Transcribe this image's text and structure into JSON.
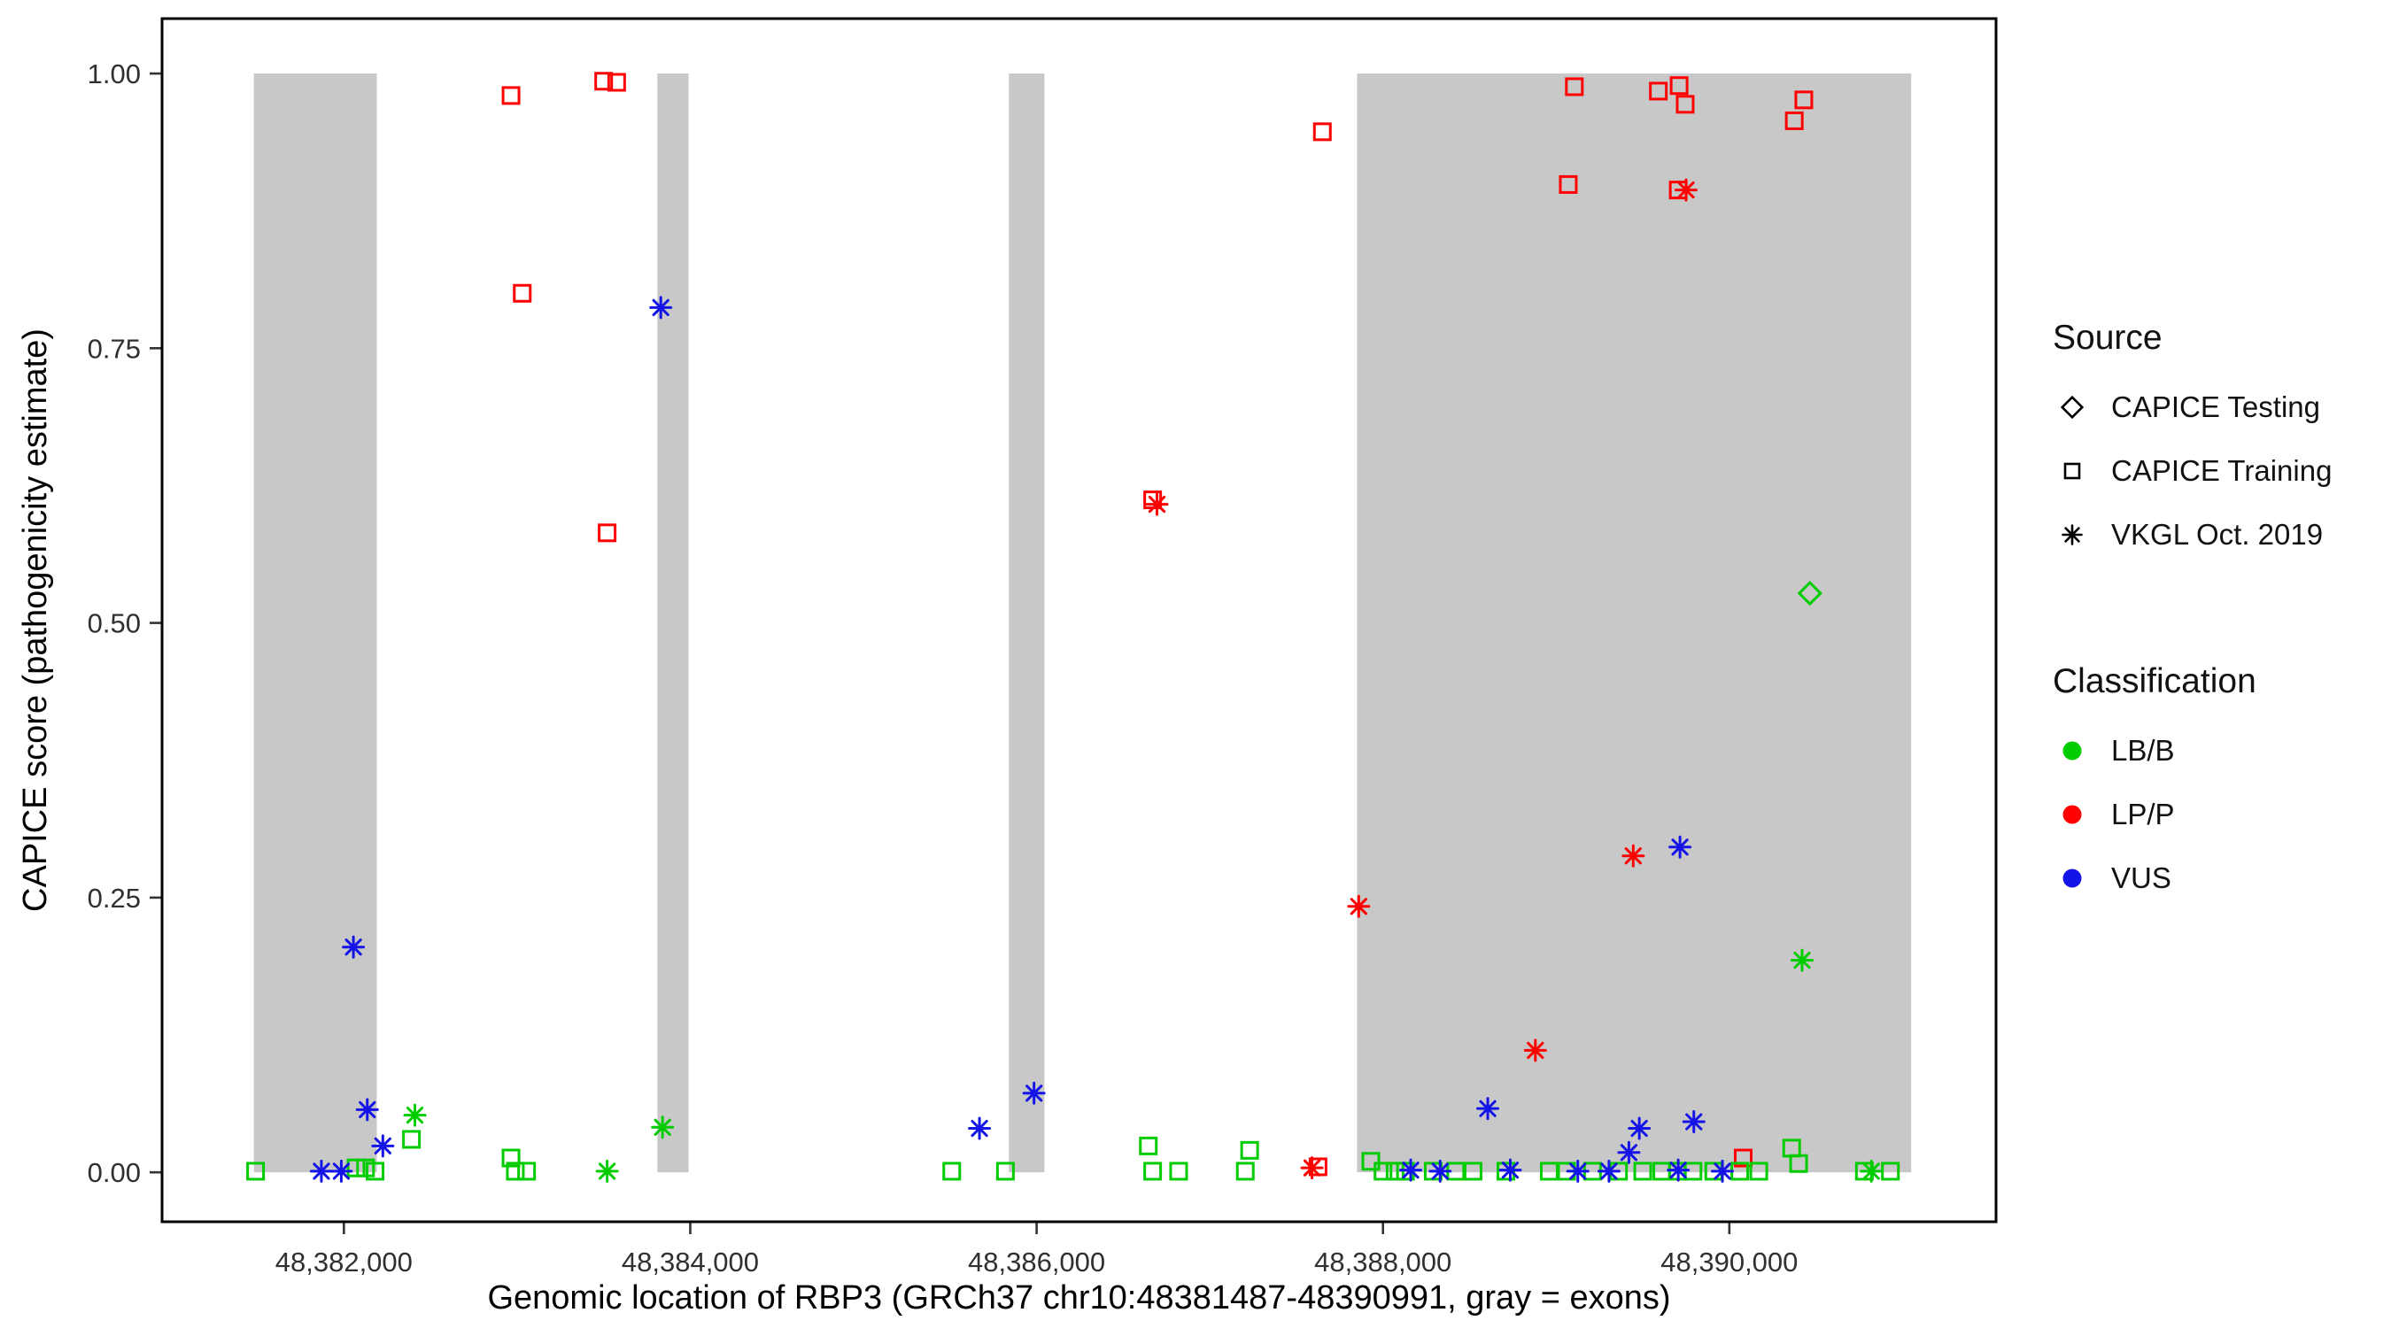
{
  "chart_data": {
    "type": "scatter",
    "title": "",
    "xlabel": "Genomic location of RBP3 (GRCh37 chr10:48381487-48390991, gray = exons)",
    "ylabel": "CAPICE score (pathogenicity estimate)",
    "xlim": [
      48380950,
      48391540
    ],
    "ylim": [
      -0.045,
      1.05
    ],
    "x_ticks": [
      {
        "value": 48382000,
        "label": "48,382,000"
      },
      {
        "value": 48384000,
        "label": "48,384,000"
      },
      {
        "value": 48386000,
        "label": "48,386,000"
      },
      {
        "value": 48388000,
        "label": "48,388,000"
      },
      {
        "value": 48390000,
        "label": "48,390,000"
      }
    ],
    "y_ticks": [
      {
        "value": 0.0,
        "label": "0.00"
      },
      {
        "value": 0.25,
        "label": "0.25"
      },
      {
        "value": 0.5,
        "label": "0.50"
      },
      {
        "value": 0.75,
        "label": "0.75"
      },
      {
        "value": 1.0,
        "label": "1.00"
      }
    ],
    "grid": false,
    "exon_color": "#c8c8c8",
    "exons": [
      [
        48381480,
        48382190
      ],
      [
        48383810,
        48383990
      ],
      [
        48385840,
        48386045
      ],
      [
        48387850,
        48391050
      ]
    ],
    "series": [
      {
        "name": "CAPICE Testing / LB-B",
        "source": "CAPICE Testing",
        "classification": "LB/B",
        "marker": "diamond",
        "color": "#00cc00",
        "points": [
          [
            48390465,
            0.527
          ]
        ]
      },
      {
        "name": "CAPICE Training / LP-P",
        "source": "CAPICE Training",
        "classification": "LP/P",
        "marker": "square",
        "color": "#ff0000",
        "points": [
          [
            48382965,
            0.98
          ],
          [
            48383030,
            0.8
          ],
          [
            48383500,
            0.993
          ],
          [
            48383575,
            0.992
          ],
          [
            48383520,
            0.582
          ],
          [
            48386670,
            0.612
          ],
          [
            48387650,
            0.947
          ],
          [
            48387625,
            0.005
          ],
          [
            48389070,
            0.899
          ],
          [
            48389105,
            0.988
          ],
          [
            48389590,
            0.984
          ],
          [
            48389710,
            0.989
          ],
          [
            48389745,
            0.972
          ],
          [
            48389705,
            0.894
          ],
          [
            48390080,
            0.013
          ],
          [
            48390375,
            0.957
          ],
          [
            48390430,
            0.976
          ]
        ]
      },
      {
        "name": "CAPICE Training / LB-B",
        "source": "CAPICE Training",
        "classification": "LB/B",
        "marker": "square",
        "color": "#00cc00",
        "points": [
          [
            48381490,
            0.001
          ],
          [
            48382070,
            0.004
          ],
          [
            48382125,
            0.004
          ],
          [
            48382180,
            0.001
          ],
          [
            48382390,
            0.03
          ],
          [
            48382965,
            0.013
          ],
          [
            48382990,
            0.001
          ],
          [
            48383055,
            0.001
          ],
          [
            48385510,
            0.001
          ],
          [
            48385820,
            0.001
          ],
          [
            48386645,
            0.024
          ],
          [
            48386670,
            0.001
          ],
          [
            48386820,
            0.001
          ],
          [
            48387230,
            0.02
          ],
          [
            48387205,
            0.001
          ],
          [
            48387930,
            0.01
          ],
          [
            48388000,
            0.001
          ],
          [
            48388070,
            0.001
          ],
          [
            48388130,
            0.001
          ],
          [
            48388290,
            0.001
          ],
          [
            48388420,
            0.001
          ],
          [
            48388520,
            0.001
          ],
          [
            48388710,
            0.001
          ],
          [
            48388960,
            0.001
          ],
          [
            48389060,
            0.001
          ],
          [
            48389210,
            0.001
          ],
          [
            48389360,
            0.001
          ],
          [
            48389500,
            0.001
          ],
          [
            48389610,
            0.001
          ],
          [
            48389700,
            0.001
          ],
          [
            48389790,
            0.001
          ],
          [
            48389910,
            0.001
          ],
          [
            48390060,
            0.001
          ],
          [
            48390170,
            0.001
          ],
          [
            48390360,
            0.022
          ],
          [
            48390400,
            0.008
          ],
          [
            48390780,
            0.001
          ],
          [
            48390930,
            0.001
          ]
        ]
      },
      {
        "name": "VKGL Oct. 2019 / LB-B",
        "source": "VKGL Oct. 2019",
        "classification": "LB/B",
        "marker": "asterisk",
        "color": "#00cc00",
        "points": [
          [
            48382410,
            0.052
          ],
          [
            48383520,
            0.001
          ],
          [
            48383840,
            0.041
          ],
          [
            48390420,
            0.193
          ],
          [
            48390820,
            0.001
          ]
        ]
      },
      {
        "name": "VKGL Oct. 2019 / LP-P",
        "source": "VKGL Oct. 2019",
        "classification": "LP/P",
        "marker": "asterisk",
        "color": "#ff0000",
        "points": [
          [
            48386695,
            0.608
          ],
          [
            48387860,
            0.242
          ],
          [
            48388880,
            0.111
          ],
          [
            48389445,
            0.288
          ],
          [
            48389750,
            0.894
          ],
          [
            48387590,
            0.004
          ]
        ]
      },
      {
        "name": "VKGL Oct. 2019 / VUS",
        "source": "VKGL Oct. 2019",
        "classification": "VUS",
        "marker": "asterisk",
        "color": "#1414e6",
        "points": [
          [
            48382055,
            0.205
          ],
          [
            48382135,
            0.057
          ],
          [
            48382225,
            0.024
          ],
          [
            48381870,
            0.001
          ],
          [
            48381985,
            0.001
          ],
          [
            48383830,
            0.787
          ],
          [
            48385670,
            0.04
          ],
          [
            48385985,
            0.072
          ],
          [
            48388605,
            0.058
          ],
          [
            48388160,
            0.002
          ],
          [
            48388330,
            0.001
          ],
          [
            48388735,
            0.002
          ],
          [
            48389125,
            0.001
          ],
          [
            48389305,
            0.001
          ],
          [
            48389420,
            0.018
          ],
          [
            48389480,
            0.04
          ],
          [
            48389705,
            0.002
          ],
          [
            48389715,
            0.296
          ],
          [
            48389795,
            0.046
          ],
          [
            48389960,
            0.001
          ]
        ]
      }
    ]
  },
  "legend": {
    "source": {
      "title": "Source",
      "items": [
        {
          "label": "CAPICE Testing",
          "marker": "diamond",
          "color": "#000000"
        },
        {
          "label": "CAPICE Training",
          "marker": "square",
          "color": "#000000"
        },
        {
          "label": "VKGL Oct. 2019",
          "marker": "asterisk",
          "color": "#000000"
        }
      ]
    },
    "classification": {
      "title": "Classification",
      "items": [
        {
          "label": "LB/B",
          "marker": "dot",
          "color": "#00cc00"
        },
        {
          "label": "LP/P",
          "marker": "dot",
          "color": "#ff0000"
        },
        {
          "label": "VUS",
          "marker": "dot",
          "color": "#1414e6"
        }
      ]
    }
  }
}
